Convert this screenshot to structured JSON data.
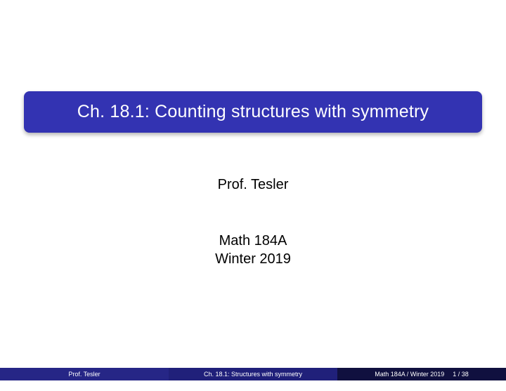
{
  "colors": {
    "title_bg": "#3333b2",
    "title_text": "#ffffff",
    "body_text": "#000000",
    "footer_left_bg": "#262686",
    "footer_center_bg": "#20207a",
    "footer_right_bg": "#10103f",
    "footer_text": "#ffffff",
    "background": "#ffffff"
  },
  "title": "Ch. 18.1: Counting structures with symmetry",
  "author": "Prof. Tesler",
  "course": "Math 184A",
  "term": "Winter 2019",
  "footer": {
    "left": "Prof. Tesler",
    "center": "Ch. 18.1: Structures with symmetry",
    "right": "Math 184A / Winter 2019",
    "page": "1 / 38"
  }
}
